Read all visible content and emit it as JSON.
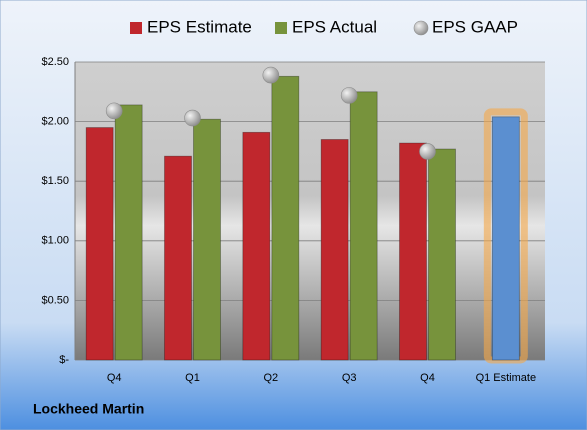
{
  "chart_data": {
    "type": "bar",
    "categories": [
      "Q4",
      "Q1",
      "Q2",
      "Q3",
      "Q4",
      "Q1 Estimate"
    ],
    "series": [
      {
        "name": "EPS Estimate",
        "color": "#c0272d",
        "values": [
          1.95,
          1.71,
          1.91,
          1.85,
          1.82,
          null
        ]
      },
      {
        "name": "EPS Actual",
        "color": "#77933c",
        "values": [
          2.14,
          2.02,
          2.38,
          2.25,
          1.77,
          null
        ]
      },
      {
        "name": "EPS GAAP",
        "color": "#a6a6a6",
        "marker": "circle",
        "values": [
          2.09,
          2.03,
          2.39,
          2.22,
          1.75,
          null
        ]
      }
    ],
    "highlight": {
      "color": "#5b8fd0",
      "glow": "#f5a94a",
      "values": [
        null,
        null,
        null,
        null,
        null,
        2.04
      ]
    },
    "ylim": [
      0,
      2.5
    ],
    "yticks": [
      {
        "value": 0,
        "label": "$-"
      },
      {
        "value": 0.5,
        "label": "$0.50"
      },
      {
        "value": 1,
        "label": "$1.00"
      },
      {
        "value": 1.5,
        "label": "$1.50"
      },
      {
        "value": 2,
        "label": "$2.00"
      },
      {
        "value": 2.5,
        "label": "$2.50"
      }
    ],
    "grid": true,
    "legend": "top",
    "footer": "Lockheed Martin"
  }
}
